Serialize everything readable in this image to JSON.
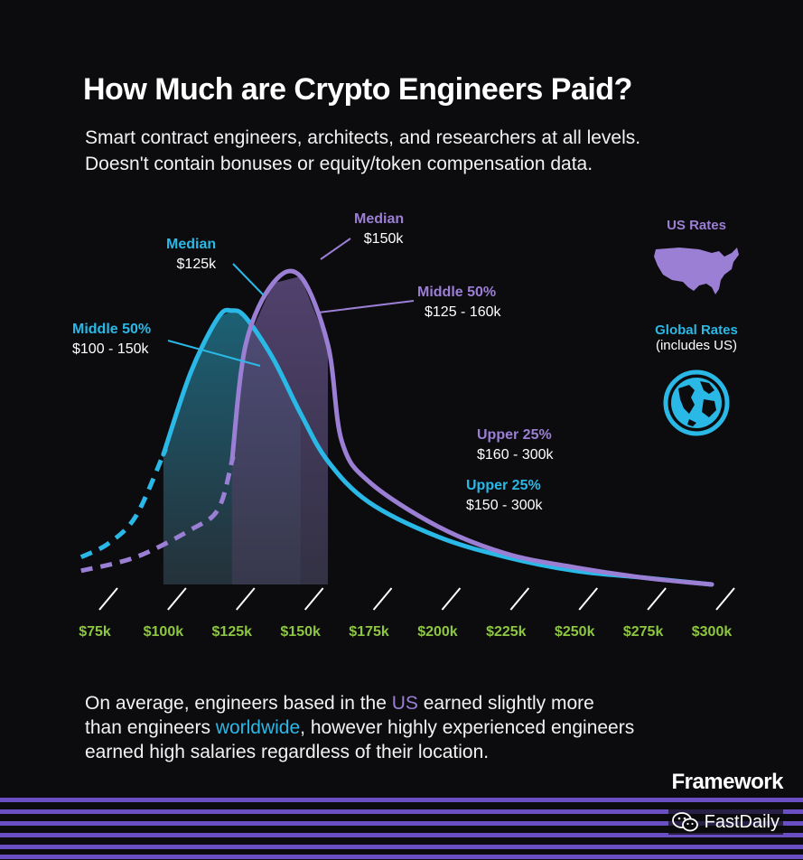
{
  "title": "How Much are Crypto Engineers Paid?",
  "subtitle": [
    "Smart contract engineers, architects, and researchers at all levels.",
    "Doesn't contain bonuses or equity/token compensation data."
  ],
  "colors": {
    "global": "#2ab8e6",
    "us": "#9b7fd4",
    "tick": "#8dc63f",
    "accent": "#6a4fc4"
  },
  "chart_data": {
    "type": "area",
    "x_ticks": [
      "$75k",
      "$100k",
      "$125k",
      "$150k",
      "$175k",
      "$200k",
      "$225k",
      "$250k",
      "$275k",
      "$300k"
    ],
    "xlim": [
      75,
      300
    ],
    "series": [
      {
        "name": "Global Rates",
        "x": [
          70,
          80,
          90,
          100,
          110,
          120,
          125,
          130,
          140,
          150,
          160,
          175,
          200,
          225,
          250,
          275,
          300
        ],
        "y": [
          0.08,
          0.12,
          0.2,
          0.38,
          0.62,
          0.78,
          0.8,
          0.78,
          0.66,
          0.5,
          0.36,
          0.24,
          0.14,
          0.08,
          0.04,
          0.02,
          0.0
        ],
        "middle_50_range": [
          100,
          150
        ]
      },
      {
        "name": "US Rates",
        "x": [
          70,
          90,
          110,
          120,
          125,
          130,
          140,
          150,
          160,
          165,
          175,
          200,
          225,
          250,
          275,
          300
        ],
        "y": [
          0.04,
          0.08,
          0.16,
          0.22,
          0.36,
          0.7,
          0.88,
          0.9,
          0.7,
          0.42,
          0.3,
          0.17,
          0.09,
          0.05,
          0.02,
          0.0
        ],
        "middle_50_range": [
          125,
          160
        ]
      }
    ],
    "annotations": {
      "global_median": {
        "label": "Median",
        "value": "$125k"
      },
      "global_middle": {
        "label": "Middle 50%",
        "value": "$100 - 150k"
      },
      "global_upper": {
        "label": "Upper 25%",
        "value": "$150 - 300k"
      },
      "us_median": {
        "label": "Median",
        "value": "$150k"
      },
      "us_middle": {
        "label": "Middle 50%",
        "value": "$125 - 160k"
      },
      "us_upper": {
        "label": "Upper 25%",
        "value": "$160 - 300k"
      }
    }
  },
  "legend": {
    "us_label": "US Rates",
    "global_label": "Global Rates",
    "global_note": "(includes US)",
    "us_icon": "us-map-icon",
    "global_icon": "globe-icon"
  },
  "footer": {
    "line1_pre": "On average, engineers based in the ",
    "line1_us": "US",
    "line1_post": " earned slightly more",
    "line2_pre": "than engineers ",
    "line2_ww": "worldwide",
    "line2_post": ", however highly experienced engineers",
    "line3": "earned high salaries regardless of their location."
  },
  "brand": "Framework",
  "watermark": "FastDaily"
}
